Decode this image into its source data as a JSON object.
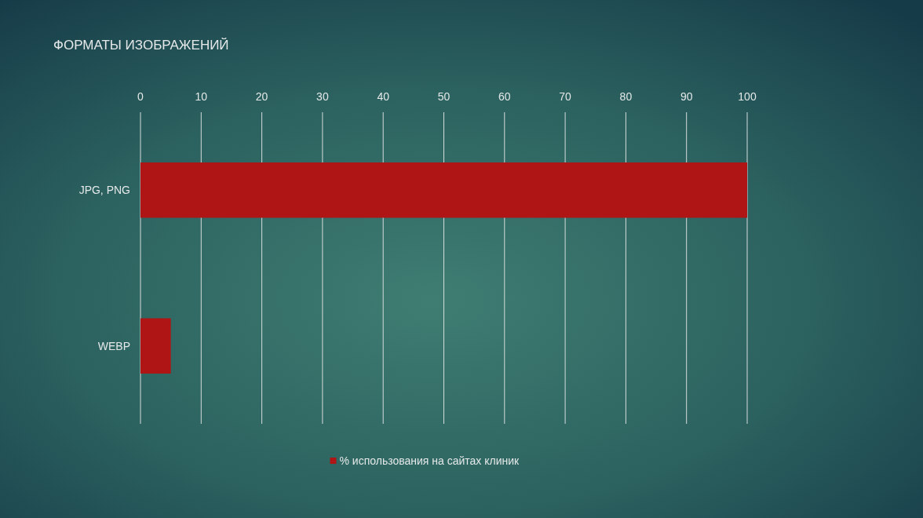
{
  "chart_data": {
    "type": "bar",
    "orientation": "horizontal",
    "title": "ФОРМАТЫ ИЗОБРАЖЕНИЙ",
    "categories": [
      "JPG, PNG",
      "WEBP"
    ],
    "series": [
      {
        "name": "% использования на сайтах клиник",
        "color": "#b01515",
        "values": [
          100,
          5
        ]
      }
    ],
    "xlim": [
      0,
      100
    ],
    "xticks": [
      0,
      10,
      20,
      30,
      40,
      50,
      60,
      70,
      80,
      90,
      100
    ],
    "grid": "x",
    "legend": "bottom"
  }
}
